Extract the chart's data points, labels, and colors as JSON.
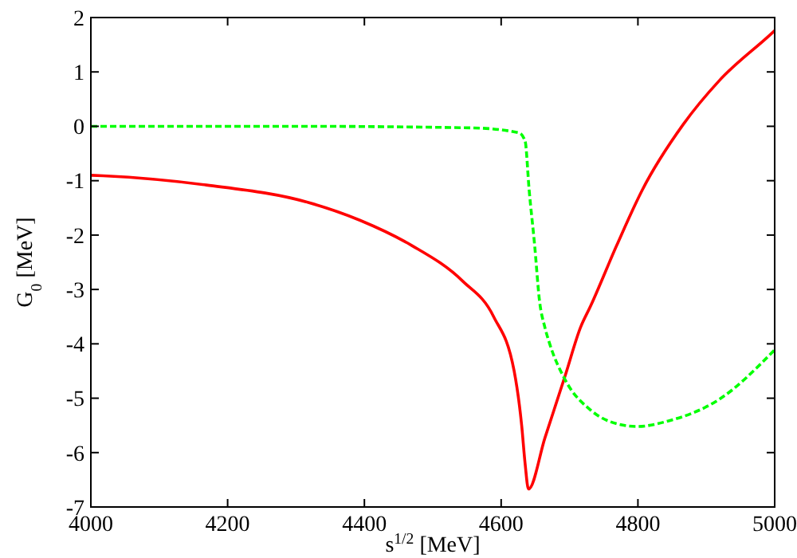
{
  "chart_data": {
    "type": "line",
    "xlabel": "s$^{1/2}$ [MeV]",
    "ylabel": "G$_{0}$ [MeV]",
    "xlim": [
      4000,
      5000
    ],
    "xticks": [
      4000,
      4200,
      4400,
      4600,
      4800,
      5000
    ],
    "ylim": [
      -7,
      2
    ],
    "yticks": [
      -7,
      -6,
      -5,
      -4,
      -3,
      -2,
      -1,
      0,
      1,
      2
    ],
    "grid": false,
    "marker": "none",
    "series": [
      {
        "color": "#ff0000",
        "line_style": "solid",
        "x": [
          4000,
          4018,
          4169,
          4318,
          4394,
          4469,
          4544,
          4589,
          4619,
          4630,
          4635,
          4640,
          4664,
          4694,
          4716,
          4731,
          4769,
          4806,
          4866,
          4919,
          4994,
          5000
        ],
        "values": [
          -0.9,
          -0.91,
          -1.08,
          -1.4,
          -1.73,
          -2.19,
          -2.85,
          -3.5,
          -4.5,
          -5.5,
          -6.2,
          -6.67,
          -5.73,
          -4.57,
          -3.7,
          -3.3,
          -2.19,
          -1.18,
          0.03,
          0.84,
          1.69,
          1.76
        ]
      },
      {
        "color": "#00ff00",
        "line_style": "dashed",
        "x": [
          4000,
          4300,
          4560,
          4626,
          4635,
          4641,
          4649,
          4656,
          4664,
          4671,
          4694,
          4731,
          4769,
          4799,
          4844,
          4919,
          5000
        ],
        "values": [
          0,
          0,
          -0.03,
          -0.12,
          -0.27,
          -1.18,
          -2.19,
          -3.2,
          -3.7,
          -4.0,
          -4.67,
          -5.22,
          -5.47,
          -5.52,
          -5.42,
          -5.02,
          -4.11
        ]
      }
    ]
  }
}
